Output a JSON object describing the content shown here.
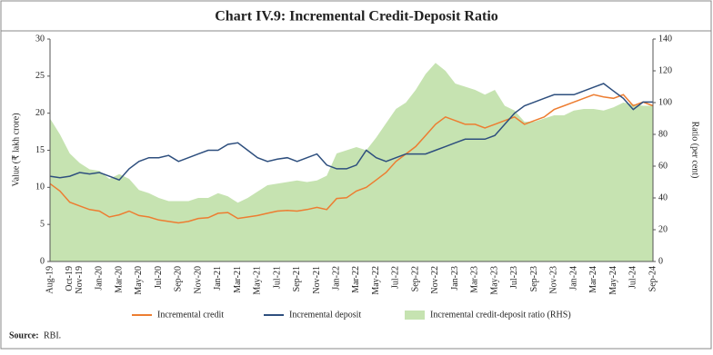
{
  "chart_data": {
    "type": "combo",
    "title": "Chart IV.9: Incremental Credit-Deposit Ratio",
    "y_label": "Value (₹ lakh crore)",
    "y2_label": "Ratio (per cent)",
    "source_label": "Source:",
    "source": "RBI.",
    "categories": [
      "Aug-19",
      null,
      "Oct-19",
      "Nov-19",
      null,
      "Jan-20",
      null,
      "Mar-20",
      null,
      "May-20",
      null,
      "Jul-20",
      null,
      "Sep-20",
      null,
      "Nov-20",
      null,
      "Jan-21",
      null,
      "Mar-21",
      null,
      "May-21",
      null,
      "Jul-21",
      null,
      "Sep-21",
      null,
      "Nov-21",
      null,
      "Jan-22",
      null,
      "Mar-22",
      null,
      "May-22",
      null,
      "Jul-22",
      null,
      "Sep-22",
      null,
      "Nov-22",
      null,
      "Jan-23",
      null,
      "Mar-23",
      null,
      "May-23",
      null,
      "Jul-23",
      null,
      "Sep-23",
      null,
      "Nov-23",
      null,
      "Jan-24",
      null,
      "Mar-24",
      null,
      "May-24",
      null,
      "Jul-24",
      null,
      "Sep-24"
    ],
    "ylim": [
      0,
      30
    ],
    "yticks": [
      0,
      5,
      10,
      15,
      20,
      25,
      30
    ],
    "y2lim": [
      0,
      140
    ],
    "y2ticks": [
      0,
      20,
      40,
      60,
      80,
      100,
      120,
      140
    ],
    "series": [
      {
        "name": "Incremental credit-deposit ratio (RHS)",
        "type": "area",
        "axis": "y2",
        "color": "#c6e3b1",
        "values": [
          90,
          80,
          68,
          62,
          58,
          57,
          52,
          55,
          52,
          45,
          43,
          40,
          38,
          38,
          38,
          40,
          40,
          43,
          41,
          37,
          40,
          44,
          48,
          49,
          50,
          51,
          50,
          51,
          54,
          68,
          70,
          72,
          70,
          78,
          87,
          96,
          100,
          108,
          118,
          125,
          120,
          112,
          110,
          108,
          105,
          108,
          98,
          95,
          88,
          88,
          90,
          92,
          92,
          95,
          96,
          96,
          95,
          97,
          100,
          99,
          98,
          98
        ]
      },
      {
        "name": "Incremental credit",
        "type": "line",
        "color": "#ed7d31",
        "values": [
          10.5,
          9.5,
          8,
          7.5,
          7,
          6.8,
          6,
          6.3,
          6.8,
          6.2,
          6,
          5.6,
          5.4,
          5.2,
          5.4,
          5.8,
          5.9,
          6.5,
          6.6,
          5.8,
          6,
          6.2,
          6.5,
          6.8,
          6.9,
          6.8,
          7,
          7.3,
          7,
          8.5,
          8.6,
          9.5,
          10,
          11,
          12,
          13.5,
          14.5,
          15.5,
          17,
          18.5,
          19.5,
          19,
          18.5,
          18.5,
          18,
          18.5,
          19,
          19.5,
          18.5,
          19,
          19.5,
          20.5,
          21,
          21.5,
          22,
          22.5,
          22.2,
          22,
          22.5,
          21,
          21.5,
          21
        ]
      },
      {
        "name": "Incremental deposit",
        "type": "line",
        "color": "#2e4f7e",
        "values": [
          11.5,
          11.3,
          11.5,
          12,
          11.8,
          12,
          11.5,
          11,
          12.5,
          13.5,
          14,
          14,
          14.3,
          13.5,
          14,
          14.5,
          15,
          15,
          15.8,
          16,
          15,
          14,
          13.5,
          13.8,
          14,
          13.5,
          14,
          14.5,
          13,
          12.5,
          12.5,
          13,
          15,
          14,
          13.5,
          14,
          14.5,
          14.5,
          14.5,
          15,
          15.5,
          16,
          16.5,
          16.5,
          16.5,
          17,
          18.5,
          20,
          21,
          21.5,
          22,
          22.5,
          22.5,
          22.5,
          23,
          23.5,
          24,
          23,
          22,
          20.5,
          21.5,
          21.5
        ]
      }
    ]
  }
}
